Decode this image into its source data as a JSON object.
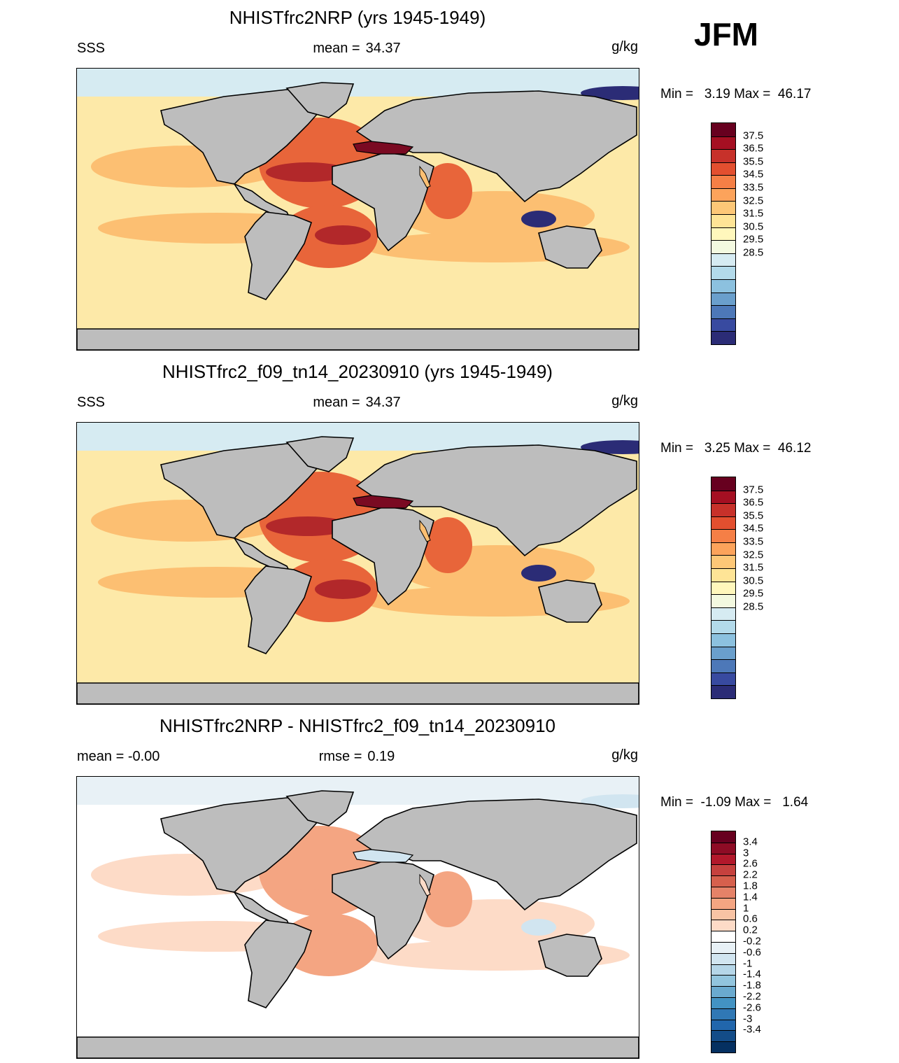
{
  "season": "JFM",
  "panels": [
    {
      "title": "NHISTfrc2NRP (yrs 1945-1949)",
      "left_label": "SSS",
      "mid_label": "mean =",
      "mid_value": "34.37",
      "units": "g/kg",
      "minmax": "Min =   3.19 Max =  46.17",
      "palette": "full",
      "colorbar": {
        "colors": [
          "#67001f",
          "#a50f22",
          "#c7312a",
          "#e34f2f",
          "#f57f46",
          "#fca35b",
          "#fdc777",
          "#fee496",
          "#fff7bc",
          "#f3f9e0",
          "#d6ebf2",
          "#b3daea",
          "#8cc1df",
          "#6a9fcc",
          "#4d78b8",
          "#384aa0",
          "#2b2c76"
        ],
        "labels": [
          "37.5",
          "36.5",
          "35.5",
          "34.5",
          "33.5",
          "32.5",
          "31.5",
          "30.5",
          "29.5",
          "28.5"
        ]
      },
      "map_colors": {
        "ocean_low": "#fde9a8",
        "ocean_mid": "#fcbf72",
        "ocean_high": "#e8653a",
        "ocean_max": "#b2282a",
        "med": "#7a0a22",
        "polar": "#d6ebf2",
        "fresh": "#2b2c76",
        "land": "#bdbdbd"
      }
    },
    {
      "title": "NHISTfrc2_f09_tn14_20230910 (yrs 1945-1949)",
      "left_label": "SSS",
      "mid_label": "mean =",
      "mid_value": "34.37",
      "units": "g/kg",
      "minmax": "Min =   3.25 Max =  46.12",
      "palette": "full",
      "colorbar": {
        "colors": [
          "#67001f",
          "#a50f22",
          "#c7312a",
          "#e34f2f",
          "#f57f46",
          "#fca35b",
          "#fdc777",
          "#fee496",
          "#fff7bc",
          "#f3f9e0",
          "#d6ebf2",
          "#b3daea",
          "#8cc1df",
          "#6a9fcc",
          "#4d78b8",
          "#384aa0",
          "#2b2c76"
        ],
        "labels": [
          "37.5",
          "36.5",
          "35.5",
          "34.5",
          "33.5",
          "32.5",
          "31.5",
          "30.5",
          "29.5",
          "28.5"
        ]
      },
      "map_colors": {
        "ocean_low": "#fde9a8",
        "ocean_mid": "#fcbf72",
        "ocean_high": "#e8653a",
        "ocean_max": "#b2282a",
        "med": "#7a0a22",
        "polar": "#d6ebf2",
        "fresh": "#2b2c76",
        "land": "#bdbdbd"
      }
    },
    {
      "title": "NHISTfrc2NRP - NHISTfrc2_f09_tn14_20230910",
      "left_label": "mean =  -0.00",
      "mid_label": "rmse =",
      "mid_value": "0.19",
      "units": "g/kg",
      "minmax": "Min =  -1.09 Max =   1.64",
      "palette": "diff",
      "colorbar": {
        "colors": [
          "#67001f",
          "#8e0c25",
          "#b2182b",
          "#c6413e",
          "#d6604d",
          "#e58268",
          "#f4a582",
          "#f8c3a4",
          "#fddbc7",
          "#ffffff",
          "#e8f1f6",
          "#d1e5f0",
          "#b5d6e8",
          "#92c5de",
          "#6aaacf",
          "#4393c3",
          "#3078b5",
          "#2166ac",
          "#134c88",
          "#053061"
        ],
        "labels": [
          "3.4",
          "3",
          "2.6",
          "2.2",
          "1.8",
          "1.4",
          "1",
          "0.6",
          "0.2",
          "-0.2",
          "-0.6",
          "-1",
          "-1.4",
          "-1.8",
          "-2.2",
          "-2.6",
          "-3",
          "-3.4"
        ]
      },
      "map_colors": {
        "ocean_low": "#ffffff",
        "ocean_mid": "#fddbc7",
        "ocean_high": "#f4a582",
        "ocean_max": "#f4a582",
        "med": "#d1e5f0",
        "polar": "#e8f1f6",
        "fresh": "#d1e5f0",
        "land": "#bdbdbd"
      }
    }
  ]
}
